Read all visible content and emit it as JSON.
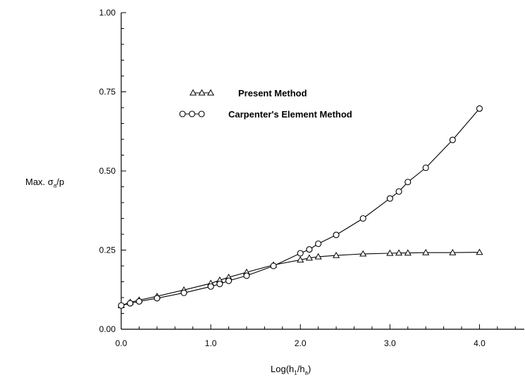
{
  "chart_data": {
    "type": "line",
    "xlabel": {
      "prefix": "Log(h",
      "sub1": "1",
      "mid": "/h",
      "sub2": "a",
      "suffix": ")"
    },
    "ylabel": {
      "prefix": "Max. σ",
      "sub": "a",
      "suffix": "/p"
    },
    "xlim": [
      0.0,
      4.5
    ],
    "ylim": [
      0.0,
      1.0
    ],
    "x_ticks": [
      "0.0",
      "1.0",
      "2.0",
      "3.0",
      "4.0"
    ],
    "y_ticks": [
      "0.00",
      "0.25",
      "0.50",
      "0.75",
      "1.00"
    ],
    "grid": false,
    "legend_position": "top-left",
    "series": [
      {
        "name": "Present Method",
        "marker": "triangle",
        "x": [
          0.0,
          0.1,
          0.2,
          0.4,
          0.7,
          1.0,
          1.1,
          1.2,
          1.4,
          1.7,
          2.0,
          2.1,
          2.2,
          2.4,
          2.7,
          3.0,
          3.1,
          3.2,
          3.4,
          3.7,
          4.0
        ],
        "y": [
          0.075,
          0.085,
          0.092,
          0.104,
          0.124,
          0.145,
          0.155,
          0.164,
          0.18,
          0.203,
          0.219,
          0.225,
          0.229,
          0.233,
          0.238,
          0.24,
          0.241,
          0.241,
          0.242,
          0.242,
          0.243
        ]
      },
      {
        "name": "Carpenter's Element Method",
        "marker": "circle",
        "x": [
          0.0,
          0.1,
          0.2,
          0.4,
          0.7,
          1.0,
          1.1,
          1.2,
          1.4,
          1.7,
          2.0,
          2.1,
          2.2,
          2.4,
          2.7,
          3.0,
          3.1,
          3.2,
          3.4,
          3.7,
          4.0
        ],
        "y": [
          0.075,
          0.082,
          0.088,
          0.098,
          0.115,
          0.135,
          0.143,
          0.153,
          0.169,
          0.2,
          0.24,
          0.252,
          0.27,
          0.298,
          0.35,
          0.413,
          0.435,
          0.465,
          0.51,
          0.598,
          0.697
        ]
      }
    ]
  }
}
